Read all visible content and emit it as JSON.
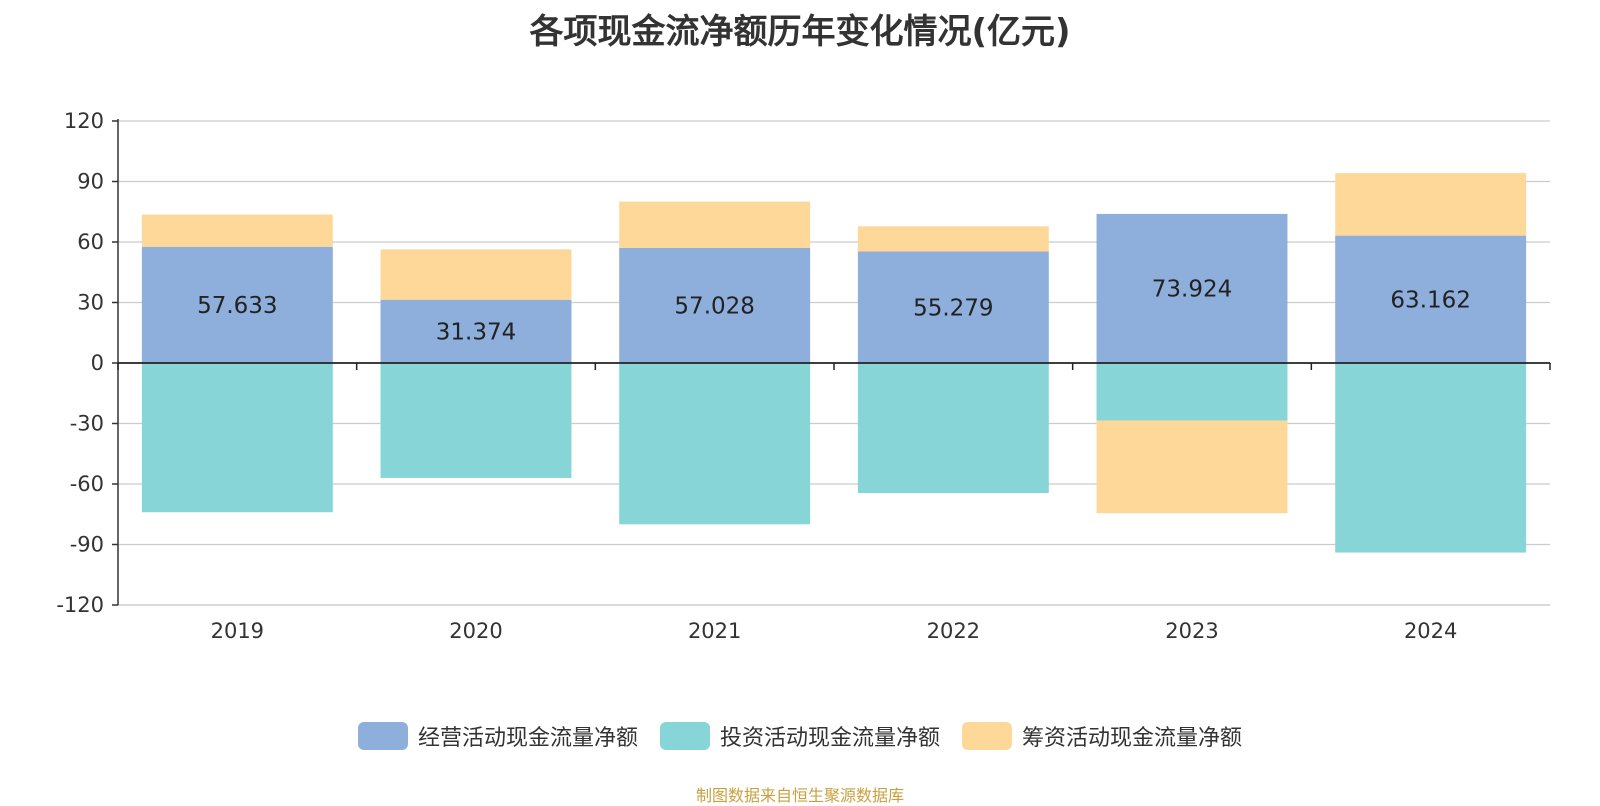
{
  "chart_data": {
    "type": "bar",
    "stacked": true,
    "title": "各项现金流净额历年变化情况(亿元)",
    "xlabel": "",
    "ylabel": "",
    "ylim": [
      -120,
      120
    ],
    "yticks": [
      120,
      90,
      60,
      30,
      0,
      -30,
      -60,
      -90,
      -120
    ],
    "grid": true,
    "legend_position": "bottom",
    "categories": [
      "2019",
      "2020",
      "2021",
      "2022",
      "2023",
      "2024"
    ],
    "series": [
      {
        "name": "经营活动现金流量净额",
        "color": "#8eaedb",
        "values": [
          57.633,
          31.374,
          57.028,
          55.279,
          73.924,
          63.162
        ],
        "data_labels": [
          "57.633",
          "31.374",
          "57.028",
          "55.279",
          "73.924",
          "63.162"
        ]
      },
      {
        "name": "投资活动现金流量净额",
        "color": "#88d5d8",
        "values": [
          -74.0,
          -57.0,
          -80.0,
          -64.5,
          -28.5,
          -94.0
        ]
      },
      {
        "name": "筹资活动现金流量净额",
        "color": "#fdd898",
        "values": [
          16.0,
          25.0,
          23.0,
          12.5,
          -46.0,
          31.0
        ]
      }
    ],
    "source": "制图数据来自恒生聚源数据库"
  }
}
